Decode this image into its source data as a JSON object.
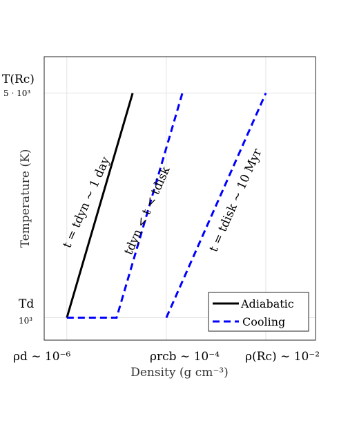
{
  "chart_data": {
    "type": "line",
    "title": "",
    "xlabel": "Density (g cm⁻³)",
    "ylabel": "Temperature (K)",
    "xscale": "log",
    "xlim": [
      3.5e-07,
      0.1
    ],
    "ylim": [
      600,
      5650
    ],
    "grid": true,
    "x_ticks": [
      {
        "value": 1e-06,
        "label": "ρd ∼ 10⁻⁶"
      },
      {
        "value": 0.0001,
        "label": "ρrcb ∼ 10⁻⁴"
      },
      {
        "value": 0.01,
        "label": "ρ(Rc) ∼ 10⁻²"
      }
    ],
    "y_ticks": [
      {
        "value": 1000,
        "label": "Td",
        "sublabel": "10³"
      },
      {
        "value": 5000,
        "label": "T(Rc)",
        "sublabel": "5 · 10³"
      }
    ],
    "series": [
      {
        "name": "Adiabatic",
        "style": "solid",
        "color": "#000000",
        "x": [
          1e-06,
          2.1e-05
        ],
        "y": [
          1000,
          5000
        ]
      },
      {
        "name": "Cooling",
        "style": "dashed",
        "color": "#0000ff",
        "x": [
          1e-06,
          1e-05,
          0.00021
        ],
        "y": [
          1000,
          1000,
          5000
        ]
      },
      {
        "name": "",
        "style": "dashed",
        "color": "#0000ff",
        "x": [
          0.0001,
          0.01
        ],
        "y": [
          1000,
          5000
        ]
      }
    ],
    "annotations": [
      {
        "text": "t = tdyn ∼ 1 day"
      },
      {
        "text": "tdyn < t < tdisk"
      },
      {
        "text": "t = tdisk ∼ 10 Myr"
      }
    ],
    "legend": {
      "placement": "bottom-right",
      "entries": [
        "Adiabatic",
        "Cooling"
      ]
    }
  }
}
